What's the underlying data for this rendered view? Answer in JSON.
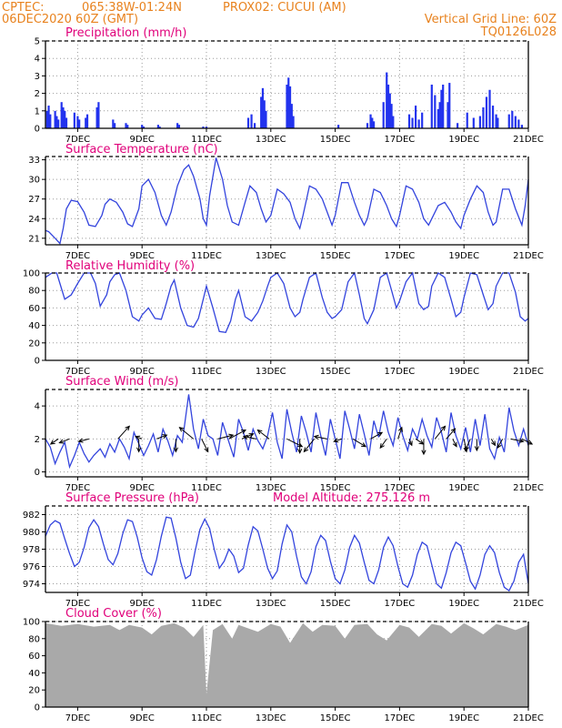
{
  "header": {
    "source": "CPTEC:",
    "coords": "065:38W-01:24N",
    "station": "PROX02: CUCUI (AM)",
    "run": "06DEC2020 60Z (GMT)",
    "grid_line": "Vertical Grid Line: 60Z",
    "code": "TQ0126L028"
  },
  "x_axis": {
    "ticks": [
      "7DEC",
      "9DEC",
      "11DEC",
      "13DEC",
      "15DEC",
      "17DEC",
      "19DEC",
      "21DEC"
    ],
    "tick_days": [
      7,
      9,
      11,
      13,
      15,
      17,
      19,
      21
    ],
    "start_day": 6.0,
    "end_day": 21.0
  },
  "colors": {
    "line": "#3344dd",
    "bars": "#2233ee",
    "cloud": "#a9a9a9",
    "title": "#e0007a",
    "header": "#e8821e"
  },
  "panels": {
    "precip": {
      "title": "Precipitation (mm/h)",
      "yticks": [
        0,
        1,
        2,
        3,
        4,
        5
      ]
    },
    "temp": {
      "title": "Surface Temperature (nC)",
      "yticks": [
        21,
        24,
        27,
        30,
        33
      ]
    },
    "humidity": {
      "title": "Relative Humidity (%)",
      "yticks": [
        0,
        20,
        40,
        60,
        80,
        100
      ]
    },
    "wind": {
      "title": "Surface Wind (m/s)",
      "yticks": [
        0,
        2,
        4
      ]
    },
    "pressure": {
      "title": "Surface Pressure (hPa)",
      "extra": "Model Altitude: 275.126 m",
      "yticks": [
        974,
        976,
        978,
        980,
        982
      ]
    },
    "cloud": {
      "title": "Cloud Cover (%)",
      "yticks": [
        0,
        20,
        40,
        60,
        80,
        100
      ]
    }
  },
  "chart_data": [
    {
      "type": "bar",
      "title": "Precipitation (mm/h)",
      "ylabel": "mm/h",
      "ylim": [
        0,
        5
      ],
      "grid": true,
      "x": [
        6.05,
        6.1,
        6.15,
        6.3,
        6.35,
        6.4,
        6.5,
        6.55,
        6.6,
        6.65,
        6.9,
        7.0,
        7.05,
        7.25,
        7.3,
        7.6,
        7.65,
        8.1,
        8.15,
        8.5,
        8.55,
        9.0,
        9.05,
        9.5,
        9.55,
        10.1,
        10.15,
        10.9,
        11.0,
        12.3,
        12.4,
        12.5,
        12.7,
        12.75,
        12.8,
        12.85,
        13.5,
        13.55,
        13.6,
        13.65,
        13.7,
        15.1,
        16.0,
        16.1,
        16.15,
        16.2,
        16.5,
        16.6,
        16.65,
        16.7,
        16.75,
        16.8,
        17.3,
        17.4,
        17.5,
        17.6,
        17.7,
        18.0,
        18.1,
        18.2,
        18.25,
        18.3,
        18.35,
        18.5,
        18.55,
        18.8,
        19.1,
        19.3,
        19.5,
        19.6,
        19.7,
        19.8,
        19.9,
        20.0,
        20.05,
        20.4,
        20.5,
        20.6,
        20.7,
        20.8
      ],
      "values": [
        1.0,
        1.3,
        0.8,
        1.0,
        0.7,
        0.5,
        1.5,
        1.2,
        1.0,
        0.6,
        0.9,
        0.7,
        0.5,
        0.6,
        0.8,
        1.2,
        1.5,
        0.5,
        0.3,
        0.3,
        0.2,
        0.2,
        0.1,
        0.2,
        0.1,
        0.3,
        0.2,
        0.1,
        0.1,
        0.6,
        0.8,
        0.3,
        1.8,
        2.3,
        1.6,
        1.0,
        2.5,
        2.9,
        2.4,
        1.4,
        0.7,
        0.2,
        0.3,
        0.8,
        0.6,
        0.4,
        1.5,
        3.2,
        2.5,
        2.0,
        1.4,
        0.7,
        0.8,
        0.6,
        1.3,
        0.5,
        0.9,
        2.5,
        1.9,
        1.1,
        1.5,
        2.2,
        2.5,
        1.5,
        2.6,
        0.3,
        0.9,
        0.6,
        0.7,
        1.2,
        1.8,
        2.2,
        1.3,
        0.8,
        0.6,
        0.8,
        1.0,
        0.7,
        0.5,
        0.2
      ]
    },
    {
      "type": "line",
      "title": "Surface Temperature (nC)",
      "ylim": [
        20,
        33.5
      ],
      "grid": true,
      "x": [
        6.0,
        6.1,
        6.3,
        6.45,
        6.55,
        6.65,
        6.8,
        7.0,
        7.2,
        7.35,
        7.55,
        7.75,
        7.85,
        8.0,
        8.2,
        8.4,
        8.55,
        8.7,
        8.9,
        9.0,
        9.2,
        9.4,
        9.6,
        9.75,
        9.9,
        10.1,
        10.3,
        10.45,
        10.6,
        10.8,
        10.9,
        11.0,
        11.1,
        11.3,
        11.5,
        11.65,
        11.8,
        12.0,
        12.2,
        12.35,
        12.55,
        12.7,
        12.85,
        13.0,
        13.2,
        13.4,
        13.6,
        13.75,
        13.9,
        14.0,
        14.2,
        14.4,
        14.6,
        14.75,
        14.9,
        15.0,
        15.2,
        15.4,
        15.6,
        15.75,
        15.9,
        16.0,
        16.2,
        16.4,
        16.6,
        16.75,
        16.9,
        17.0,
        17.2,
        17.4,
        17.6,
        17.75,
        17.9,
        18.0,
        18.2,
        18.4,
        18.6,
        18.75,
        18.9,
        19.0,
        19.2,
        19.4,
        19.6,
        19.75,
        19.9,
        20.0,
        20.2,
        20.4,
        20.6,
        20.8,
        20.9,
        21.0
      ],
      "values": [
        22.2,
        22.0,
        21.0,
        20.2,
        22.5,
        25.5,
        26.8,
        26.6,
        25.0,
        23.0,
        22.8,
        24.5,
        26.2,
        27.0,
        26.5,
        25.0,
        23.2,
        22.8,
        25.5,
        29.0,
        30.0,
        28.0,
        24.5,
        23.0,
        25.0,
        29.0,
        31.5,
        32.2,
        30.5,
        27.0,
        24.0,
        23.0,
        27.5,
        33.3,
        30.0,
        26.0,
        23.5,
        23.0,
        26.5,
        29.0,
        28.0,
        25.5,
        23.5,
        24.5,
        28.5,
        27.8,
        26.5,
        24.0,
        22.5,
        24.5,
        29.0,
        28.5,
        27.0,
        25.0,
        23.0,
        24.5,
        29.5,
        29.5,
        26.5,
        24.5,
        23.0,
        24.0,
        28.5,
        28.0,
        26.0,
        24.0,
        22.8,
        24.5,
        29.0,
        28.5,
        26.5,
        24.0,
        23.0,
        24.0,
        26.0,
        26.5,
        25.0,
        23.5,
        22.5,
        24.5,
        27.0,
        29.0,
        28.0,
        25.0,
        23.0,
        23.5,
        28.5,
        28.5,
        25.5,
        23.0,
        26.0,
        30.0
      ]
    },
    {
      "type": "line",
      "title": "Relative Humidity (%)",
      "ylim": [
        0,
        100
      ],
      "grid": true,
      "x": [
        6.0,
        6.2,
        6.35,
        6.45,
        6.6,
        6.8,
        7.0,
        7.2,
        7.4,
        7.55,
        7.7,
        7.9,
        8.0,
        8.15,
        8.3,
        8.5,
        8.7,
        8.9,
        9.0,
        9.2,
        9.4,
        9.6,
        9.75,
        9.9,
        10.0,
        10.2,
        10.4,
        10.6,
        10.75,
        10.9,
        11.0,
        11.2,
        11.4,
        11.6,
        11.75,
        11.9,
        12.0,
        12.2,
        12.4,
        12.6,
        12.75,
        12.9,
        13.0,
        13.2,
        13.4,
        13.6,
        13.75,
        13.9,
        14.0,
        14.2,
        14.4,
        14.6,
        14.75,
        14.9,
        15.0,
        15.2,
        15.4,
        15.6,
        15.75,
        15.9,
        16.0,
        16.2,
        16.4,
        16.6,
        16.75,
        16.9,
        17.0,
        17.2,
        17.4,
        17.6,
        17.75,
        17.9,
        18.0,
        18.2,
        18.4,
        18.6,
        18.75,
        18.9,
        19.0,
        19.2,
        19.4,
        19.6,
        19.75,
        19.9,
        20.0,
        20.2,
        20.4,
        20.6,
        20.75,
        20.9,
        21.0
      ],
      "values": [
        95,
        100,
        100,
        88,
        70,
        75,
        88,
        100,
        100,
        88,
        62,
        75,
        90,
        98,
        100,
        80,
        50,
        45,
        52,
        60,
        48,
        47,
        65,
        85,
        92,
        60,
        40,
        38,
        48,
        70,
        85,
        60,
        33,
        32,
        45,
        70,
        80,
        50,
        45,
        55,
        68,
        85,
        95,
        100,
        88,
        60,
        50,
        55,
        70,
        95,
        100,
        72,
        55,
        48,
        50,
        58,
        90,
        100,
        75,
        48,
        42,
        58,
        95,
        100,
        80,
        60,
        68,
        90,
        100,
        65,
        58,
        62,
        85,
        100,
        95,
        70,
        50,
        55,
        72,
        100,
        98,
        75,
        58,
        65,
        85,
        100,
        100,
        78,
        50,
        45,
        48
      ]
    },
    {
      "type": "line",
      "title": "Surface Wind (m/s)",
      "ylim": [
        -0.3,
        5.0
      ],
      "grid": true,
      "x": [
        6.0,
        6.15,
        6.3,
        6.45,
        6.6,
        6.75,
        6.9,
        7.05,
        7.2,
        7.35,
        7.5,
        7.7,
        7.85,
        8.0,
        8.15,
        8.3,
        8.45,
        8.6,
        8.75,
        8.9,
        9.05,
        9.2,
        9.35,
        9.5,
        9.65,
        9.8,
        9.95,
        10.1,
        10.25,
        10.45,
        10.6,
        10.75,
        10.9,
        11.05,
        11.2,
        11.35,
        11.5,
        11.7,
        11.85,
        12.0,
        12.15,
        12.3,
        12.45,
        12.6,
        12.75,
        12.9,
        13.05,
        13.2,
        13.35,
        13.5,
        13.65,
        13.8,
        13.95,
        14.1,
        14.25,
        14.4,
        14.55,
        14.7,
        14.85,
        15.0,
        15.15,
        15.3,
        15.45,
        15.6,
        15.75,
        15.9,
        16.05,
        16.2,
        16.35,
        16.5,
        16.65,
        16.8,
        16.95,
        17.1,
        17.25,
        17.4,
        17.55,
        17.7,
        17.85,
        18.0,
        18.15,
        18.3,
        18.45,
        18.6,
        18.75,
        18.9,
        19.05,
        19.2,
        19.35,
        19.5,
        19.65,
        19.8,
        19.95,
        20.1,
        20.25,
        20.4,
        20.55,
        20.7,
        20.85,
        21.0
      ],
      "values": [
        2.0,
        1.5,
        0.5,
        1.2,
        1.8,
        0.3,
        1.0,
        1.8,
        1.1,
        0.6,
        1.0,
        1.4,
        0.9,
        1.7,
        1.2,
        2.0,
        1.5,
        0.8,
        2.4,
        1.7,
        1.0,
        1.6,
        2.3,
        1.2,
        2.6,
        1.9,
        1.0,
        2.2,
        1.8,
        4.7,
        2.6,
        1.4,
        3.2,
        2.2,
        2.0,
        1.0,
        3.0,
        1.8,
        0.9,
        3.2,
        2.4,
        1.3,
        2.6,
        1.9,
        1.4,
        2.2,
        3.6,
        1.8,
        0.8,
        3.8,
        2.4,
        1.2,
        3.4,
        2.4,
        1.2,
        3.6,
        2.2,
        1.0,
        3.2,
        2.0,
        0.8,
        3.7,
        2.6,
        1.4,
        3.5,
        2.3,
        1.0,
        3.1,
        2.1,
        3.7,
        2.4,
        1.6,
        3.3,
        2.2,
        1.3,
        2.6,
        2.0,
        3.2,
        2.2,
        1.5,
        3.3,
        2.4,
        1.2,
        3.6,
        2.2,
        1.4,
        2.7,
        1.2,
        3.2,
        1.6,
        3.5,
        1.4,
        0.8,
        2.1,
        1.2,
        3.9,
        2.5,
        1.6,
        2.6,
        1.6
      ],
      "arrows": {
        "x": [
          6.4,
          6.75,
          7.35,
          8.25,
          8.9,
          9.0,
          9.45,
          10.05,
          10.6,
          10.85,
          11.35,
          11.7,
          12.1,
          12.55,
          12.95,
          13.5,
          13.9,
          14.35,
          14.75,
          15.2,
          15.55,
          16.1,
          16.6,
          16.95,
          17.3,
          17.5,
          17.75,
          18.1,
          18.45,
          18.65,
          19.0,
          19.2,
          19.4,
          19.85,
          20.2,
          20.45,
          20.8
        ],
        "u": [
          -0.6,
          -0.8,
          -0.8,
          0.9,
          0.0,
          -0.5,
          0.8,
          0.0,
          -1.1,
          0.5,
          1.2,
          1.3,
          0.9,
          -1.0,
          -0.9,
          1.2,
          0.0,
          -0.8,
          -1.0,
          -0.6,
          1.0,
          0.9,
          -0.5,
          0.3,
          0.2,
          0.6,
          0.0,
          0.8,
          0.7,
          0.3,
          0.2,
          -0.4,
          0.0,
          0.3,
          -0.4,
          1.0,
          0.8
        ],
        "v": [
          -0.4,
          -0.3,
          -0.2,
          1.0,
          -1.0,
          0.2,
          0.3,
          -1.0,
          0.9,
          -1.0,
          0.3,
          0.7,
          0.4,
          0.2,
          0.7,
          -0.6,
          -1.1,
          -1.0,
          0.2,
          -0.2,
          -0.6,
          0.5,
          -0.7,
          0.9,
          -0.5,
          -0.4,
          -1.2,
          1.0,
          0.8,
          -0.6,
          -1.0,
          -0.9,
          -0.9,
          -0.5,
          -0.7,
          -0.2,
          -0.4
        ]
      }
    },
    {
      "type": "line",
      "title": "Surface Pressure (hPa)",
      "ylim": [
        973,
        983
      ],
      "grid": true,
      "x": [
        6.0,
        6.15,
        6.3,
        6.45,
        6.6,
        6.75,
        6.9,
        7.05,
        7.2,
        7.35,
        7.5,
        7.65,
        7.8,
        7.95,
        8.1,
        8.25,
        8.4,
        8.55,
        8.7,
        8.85,
        9.0,
        9.15,
        9.3,
        9.45,
        9.6,
        9.75,
        9.9,
        10.05,
        10.2,
        10.35,
        10.5,
        10.65,
        10.8,
        10.95,
        11.1,
        11.25,
        11.4,
        11.55,
        11.7,
        11.85,
        12.0,
        12.15,
        12.3,
        12.45,
        12.6,
        12.75,
        12.9,
        13.05,
        13.2,
        13.35,
        13.5,
        13.65,
        13.8,
        13.95,
        14.1,
        14.25,
        14.4,
        14.55,
        14.7,
        14.85,
        15.0,
        15.15,
        15.3,
        15.45,
        15.6,
        15.75,
        15.9,
        16.05,
        16.2,
        16.35,
        16.5,
        16.65,
        16.8,
        16.95,
        17.1,
        17.25,
        17.4,
        17.55,
        17.7,
        17.85,
        18.0,
        18.15,
        18.3,
        18.45,
        18.6,
        18.75,
        18.9,
        19.05,
        19.2,
        19.35,
        19.5,
        19.65,
        19.8,
        19.95,
        20.1,
        20.25,
        20.4,
        20.55,
        20.7,
        20.85,
        21.0
      ],
      "values": [
        979.5,
        980.8,
        981.3,
        981.0,
        979.2,
        977.5,
        976.0,
        976.5,
        978.2,
        980.5,
        981.4,
        980.6,
        978.6,
        976.8,
        976.2,
        977.5,
        979.8,
        981.4,
        981.2,
        979.4,
        977.0,
        975.4,
        975.0,
        976.8,
        979.5,
        981.7,
        981.6,
        979.3,
        976.5,
        974.6,
        975.0,
        977.8,
        980.3,
        981.5,
        980.4,
        977.9,
        975.8,
        976.6,
        978.0,
        977.2,
        975.3,
        975.8,
        978.5,
        980.6,
        980.1,
        978.0,
        975.8,
        974.6,
        975.5,
        978.6,
        980.8,
        980.0,
        977.2,
        974.8,
        974.0,
        975.4,
        978.3,
        979.6,
        979.0,
        976.6,
        974.6,
        974.0,
        975.6,
        978.2,
        979.6,
        978.7,
        976.5,
        974.4,
        974.0,
        975.6,
        978.2,
        979.4,
        978.4,
        976.0,
        974.0,
        973.6,
        975.0,
        977.4,
        978.8,
        978.4,
        976.2,
        974.0,
        973.5,
        975.3,
        977.6,
        978.8,
        978.4,
        976.4,
        974.3,
        973.4,
        975.0,
        977.4,
        978.4,
        977.6,
        975.3,
        973.6,
        973.2,
        974.3,
        976.5,
        977.4,
        974.0
      ]
    },
    {
      "type": "area",
      "title": "Cloud Cover (%)",
      "ylim": [
        0,
        100
      ],
      "grid": true,
      "x": [
        6.0,
        6.5,
        7.0,
        7.5,
        8.0,
        8.3,
        8.6,
        9.0,
        9.3,
        9.6,
        10.0,
        10.3,
        10.6,
        10.9,
        11.0,
        11.2,
        11.5,
        11.8,
        12.0,
        12.3,
        12.6,
        13.0,
        13.3,
        13.6,
        14.0,
        14.3,
        14.6,
        15.0,
        15.3,
        15.6,
        16.0,
        16.3,
        16.6,
        17.0,
        17.3,
        17.6,
        18.0,
        18.3,
        18.6,
        19.0,
        19.3,
        19.6,
        20.0,
        20.3,
        20.6,
        21.0
      ],
      "values": [
        98,
        95,
        97,
        94,
        96,
        90,
        96,
        93,
        85,
        95,
        98,
        93,
        82,
        96,
        15,
        90,
        97,
        80,
        96,
        92,
        88,
        97,
        94,
        75,
        98,
        88,
        96,
        95,
        80,
        96,
        97,
        85,
        78,
        96,
        93,
        82,
        97,
        95,
        86,
        98,
        92,
        85,
        97,
        94,
        90,
        96
      ]
    }
  ]
}
